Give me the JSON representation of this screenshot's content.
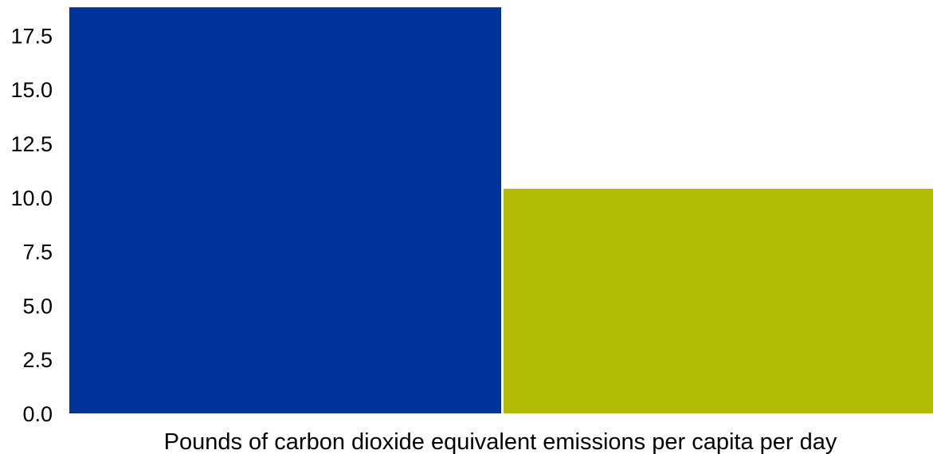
{
  "chart_data": {
    "type": "bar",
    "categories": [
      "",
      ""
    ],
    "values": [
      18.8,
      10.4
    ],
    "colors": [
      "#003399",
      "#b2bb05"
    ],
    "title": "",
    "xlabel": "Pounds of carbon dioxide equivalent emissions per capita per day",
    "ylabel": "",
    "ylim": [
      0,
      18.8
    ],
    "yticks": [
      0.0,
      2.5,
      5.0,
      7.5,
      10.0,
      12.5,
      15.0,
      17.5
    ],
    "ytick_labels": [
      "0.0",
      "2.5",
      "5.0",
      "7.5",
      "10.0",
      "12.5",
      "15.0",
      "17.5"
    ],
    "grid": false,
    "legend": false
  }
}
